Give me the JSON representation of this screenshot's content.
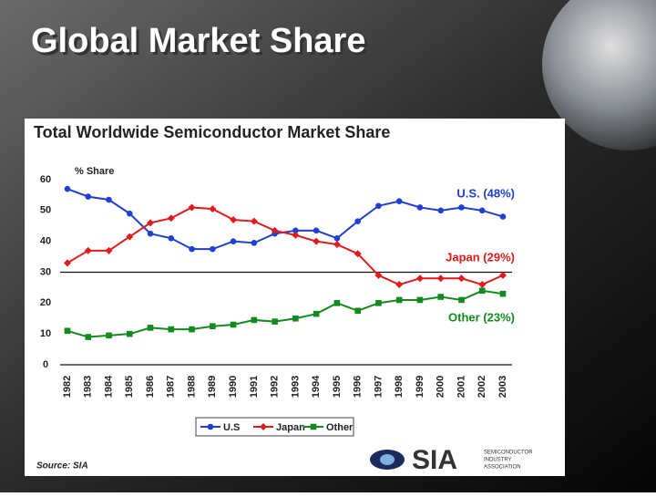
{
  "slide_title": "Global Market Share",
  "chart_data": {
    "type": "line",
    "title": "Total Worldwide Semiconductor Market Share",
    "y_label": "% Share",
    "categories": [
      "1982",
      "1983",
      "1984",
      "1985",
      "1986",
      "1987",
      "1988",
      "1989",
      "1990",
      "1991",
      "1992",
      "1993",
      "1994",
      "1995",
      "1996",
      "1997",
      "1998",
      "1999",
      "2000",
      "2001",
      "2002",
      "2003"
    ],
    "series": [
      {
        "name": "U.S",
        "color": "#1f3fd1",
        "marker": "circle",
        "values": [
          57,
          54.5,
          53.5,
          49,
          42.5,
          41,
          37.5,
          37.5,
          40,
          39.5,
          42.5,
          43.5,
          43.5,
          41,
          46.5,
          51.5,
          53,
          51,
          50,
          51,
          50,
          48
        ]
      },
      {
        "name": "Japan",
        "color": "#e01b1b",
        "marker": "diamond",
        "values": [
          33,
          37,
          37,
          41.5,
          46,
          47.5,
          51,
          50.5,
          47,
          46.5,
          43.5,
          42,
          40,
          39,
          36,
          29,
          26,
          28,
          28,
          28,
          26,
          29
        ]
      },
      {
        "name": "Other",
        "color": "#138a1e",
        "marker": "square",
        "values": [
          11,
          9,
          9.5,
          10,
          12,
          11.5,
          11.5,
          12.5,
          13,
          14.5,
          14,
          15,
          16.5,
          20,
          17.5,
          20,
          21,
          21,
          22,
          21,
          24,
          23
        ]
      }
    ],
    "annotations": [
      "U.S. (48%)",
      "Japan (29%)",
      "Other (23%)"
    ],
    "ylim": [
      0,
      60
    ],
    "yticks": [
      0,
      10,
      20,
      30,
      40,
      50,
      60
    ],
    "reference_lines": [
      0,
      30
    ],
    "source": "Source:  SIA"
  },
  "logo": {
    "name": "SIA",
    "lines": [
      "SEMICONDUCTOR",
      "INDUSTRY",
      "ASSOCIATION"
    ]
  }
}
